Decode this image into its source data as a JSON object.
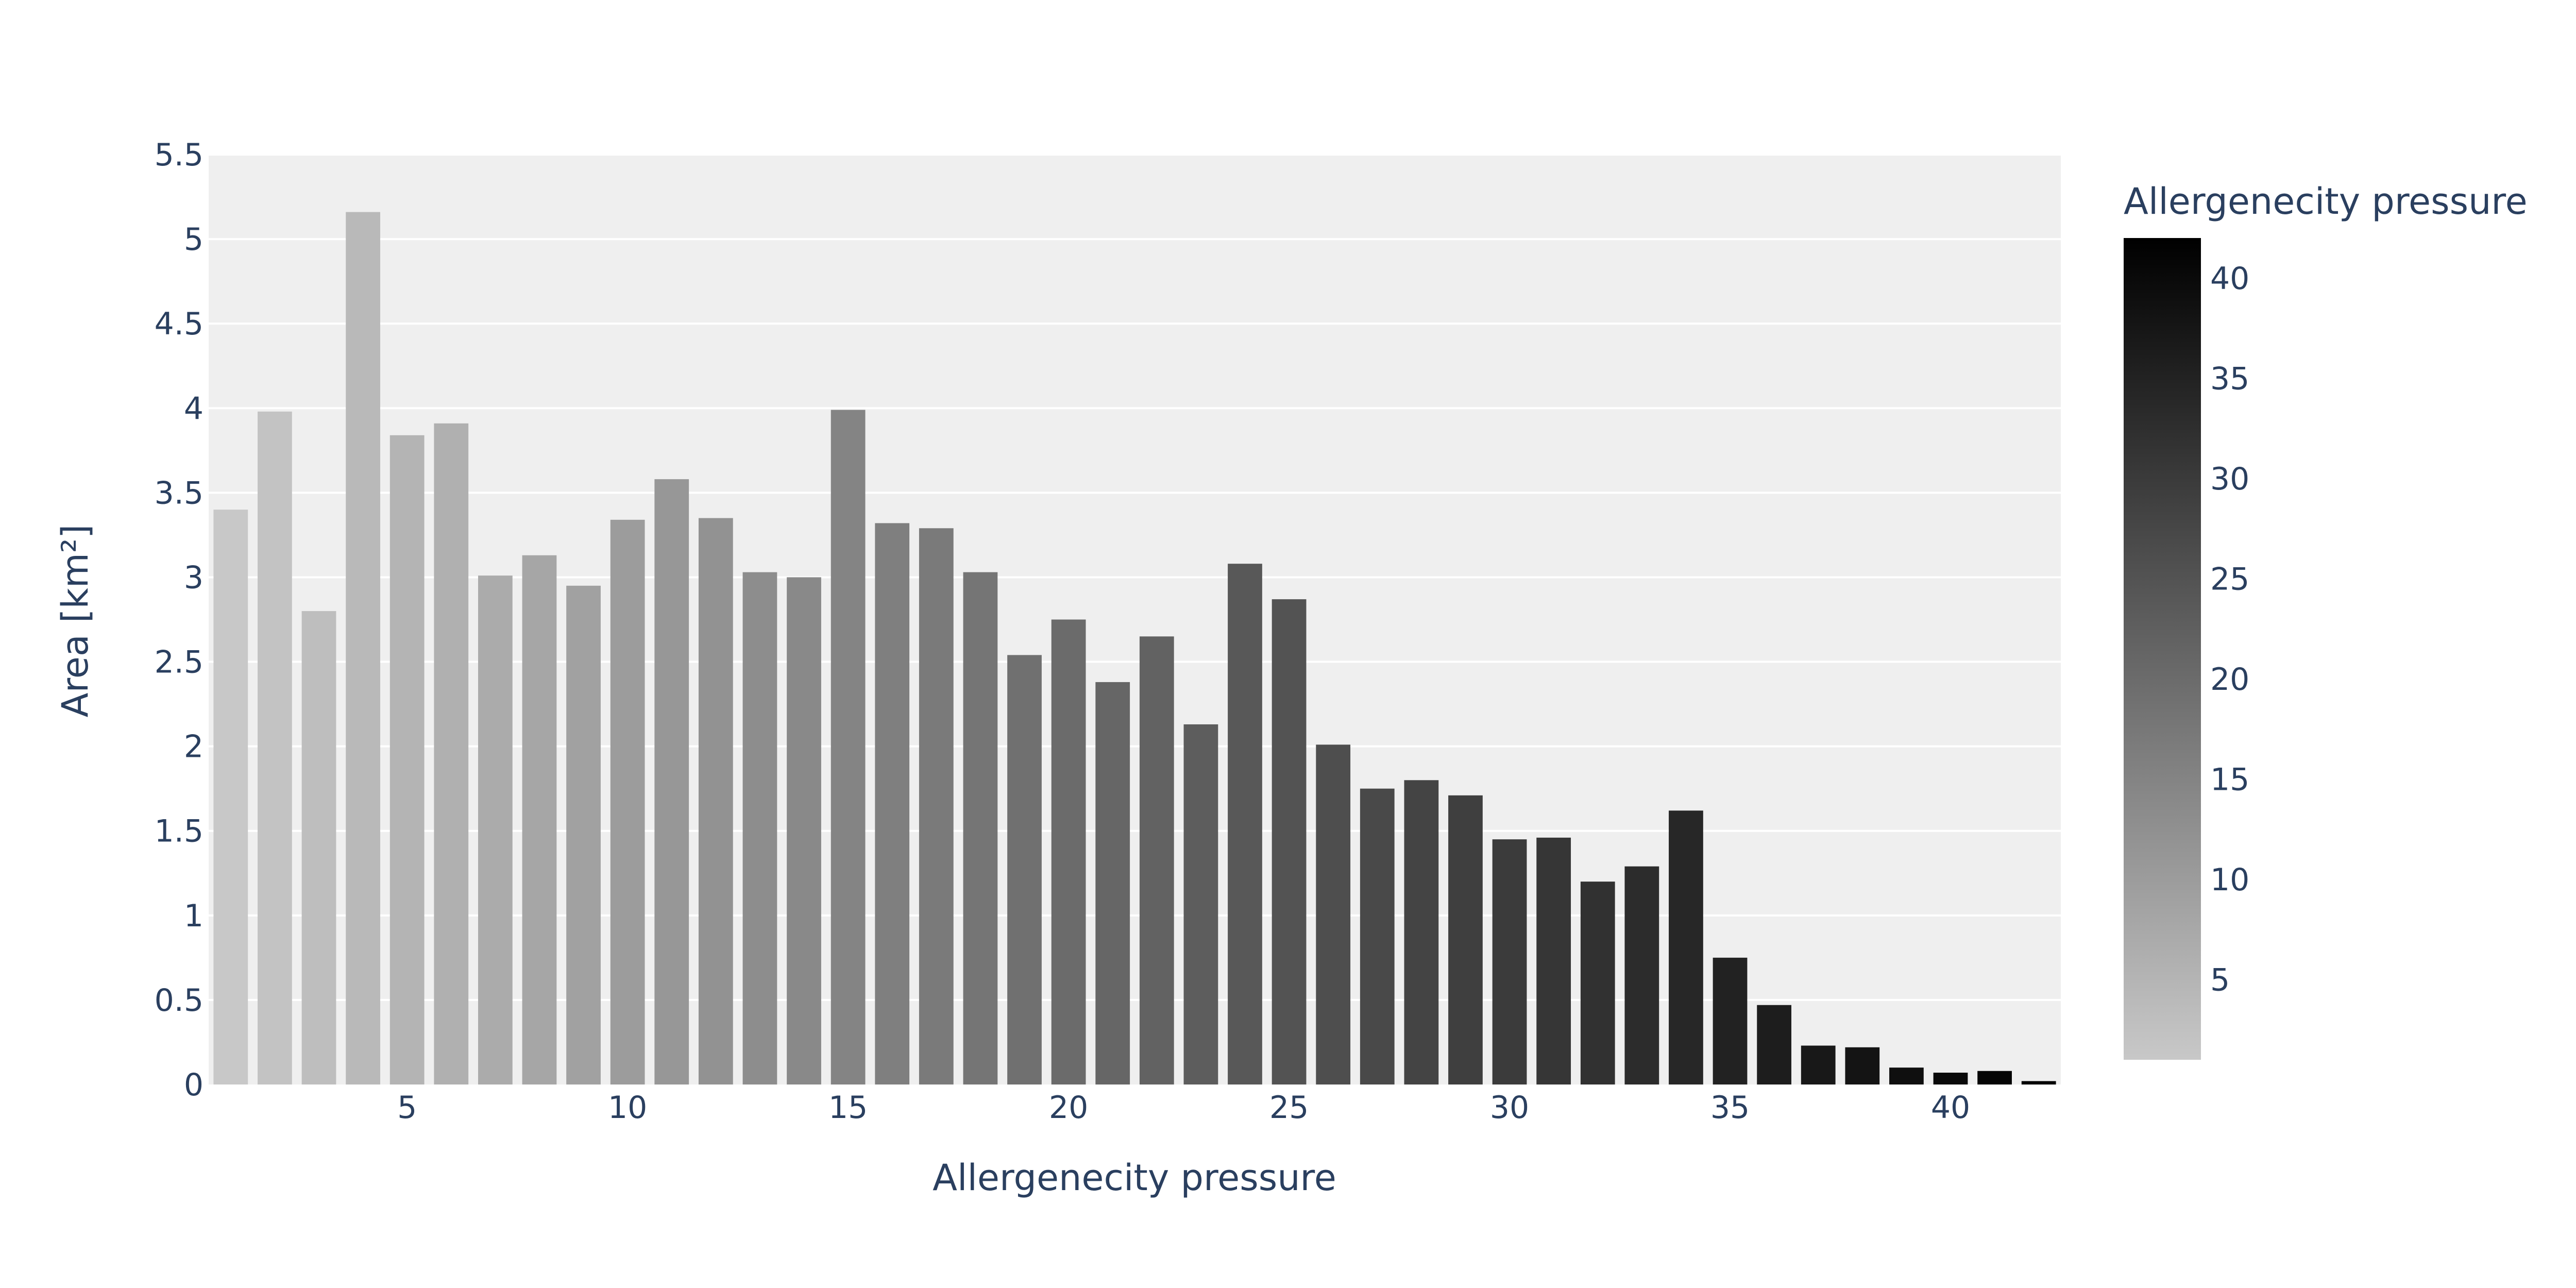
{
  "chart_data": {
    "type": "bar",
    "x": [
      1,
      2,
      3,
      4,
      5,
      6,
      7,
      8,
      9,
      10,
      11,
      12,
      13,
      14,
      15,
      16,
      17,
      18,
      19,
      20,
      21,
      22,
      23,
      24,
      25,
      26,
      27,
      28,
      29,
      30,
      31,
      32,
      33,
      34,
      35,
      36,
      37,
      38,
      39,
      40,
      41,
      42
    ],
    "values": [
      3.4,
      3.98,
      2.8,
      5.16,
      3.84,
      3.91,
      3.01,
      3.13,
      2.95,
      3.34,
      3.58,
      3.35,
      3.03,
      3.0,
      3.99,
      3.32,
      3.29,
      3.03,
      2.54,
      2.75,
      2.38,
      2.65,
      2.13,
      3.08,
      2.87,
      2.01,
      1.75,
      1.8,
      1.71,
      1.45,
      1.46,
      1.2,
      1.29,
      1.62,
      0.75,
      0.47,
      0.23,
      0.22,
      0.1,
      0.07,
      0.08,
      0.02
    ],
    "xlabel": "Allergenecity pressure",
    "ylabel": "Area [km²]",
    "ylim": [
      0,
      5.5
    ],
    "xlim": [
      0.5,
      42.5
    ],
    "x_tick_labels": [
      "5",
      "10",
      "15",
      "20",
      "25",
      "30",
      "35",
      "40"
    ],
    "y_tick_labels": [
      "0",
      "0.5",
      "1",
      "1.5",
      "2",
      "2.5",
      "3",
      "3.5",
      "4",
      "4.5",
      "5",
      "5.5"
    ],
    "grid": true,
    "colorbar": {
      "title": "Allergenecity pressure",
      "range": [
        1,
        42
      ],
      "tick_labels": [
        "5",
        "10",
        "15",
        "20",
        "25",
        "30",
        "35",
        "40"
      ],
      "color_low": "#c8c8c8",
      "color_high": "#000000"
    },
    "colors": {
      "plot_bg": "#efefef",
      "grid": "#ffffff",
      "text": "#2a3f5f"
    }
  }
}
